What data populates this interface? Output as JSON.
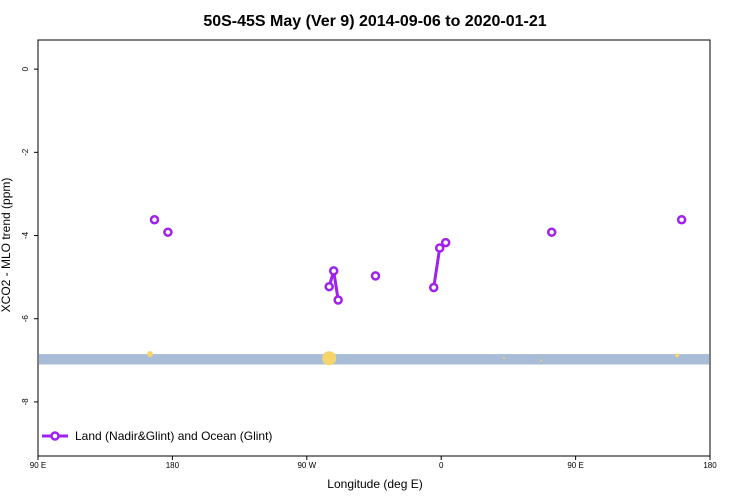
{
  "chart_data": {
    "type": "line",
    "title": "50S-45S May (Ver 9)   2014-09-06 to 2020-01-21",
    "xlabel": "Longitude (deg E)",
    "ylabel": "XCO2 - MLO trend (ppm)",
    "xlim": [
      90,
      450
    ],
    "ylim": [
      -9.3,
      0.7
    ],
    "x_ticks": [
      {
        "value": 90,
        "label": "90 E"
      },
      {
        "value": 180,
        "label": "180"
      },
      {
        "value": 270,
        "label": "90 W"
      },
      {
        "value": 360,
        "label": "0"
      },
      {
        "value": 450,
        "label": "90 E"
      },
      {
        "value": 540,
        "label": "180"
      }
    ],
    "y_ticks": [
      {
        "value": 0,
        "label": "0"
      },
      {
        "value": -2,
        "label": "-2"
      },
      {
        "value": -4,
        "label": "-4"
      },
      {
        "value": -6,
        "label": "-6"
      },
      {
        "value": -8,
        "label": "-8"
      }
    ],
    "series": [
      {
        "name": "Land (Nadir&Glint) and Ocean (Glint)",
        "color": "#a020f0",
        "segments": [
          [
            {
              "x": 168,
              "y": -3.62
            }
          ],
          [
            {
              "x": 177,
              "y": -3.92
            }
          ],
          [
            {
              "x": 285,
              "y": -5.23
            },
            {
              "x": 288,
              "y": -4.85
            },
            {
              "x": 291,
              "y": -5.55
            }
          ],
          [
            {
              "x": 316,
              "y": -4.97
            }
          ],
          [
            {
              "x": 355,
              "y": -5.25
            },
            {
              "x": 359,
              "y": -4.3
            },
            {
              "x": 363,
              "y": -4.17
            }
          ],
          [
            {
              "x": 434,
              "y": -3.92
            }
          ],
          [
            {
              "x": 521,
              "y": -3.62
            }
          ]
        ]
      }
    ],
    "land_band": {
      "y_min": -7.1,
      "y_max": -6.85,
      "color": "#a8bcd8"
    },
    "land_markers": {
      "color": "#f5d56a",
      "points": [
        {
          "x": 165,
          "y": -6.85,
          "size": 3
        },
        {
          "x": 285,
          "y": -6.95,
          "size": 7
        },
        {
          "x": 402,
          "y": -6.95,
          "size": 1
        },
        {
          "x": 427,
          "y": -7.0,
          "size": 1
        },
        {
          "x": 518,
          "y": -6.88,
          "size": 2
        }
      ]
    },
    "grid": false,
    "legend_position": "bottom-left"
  }
}
